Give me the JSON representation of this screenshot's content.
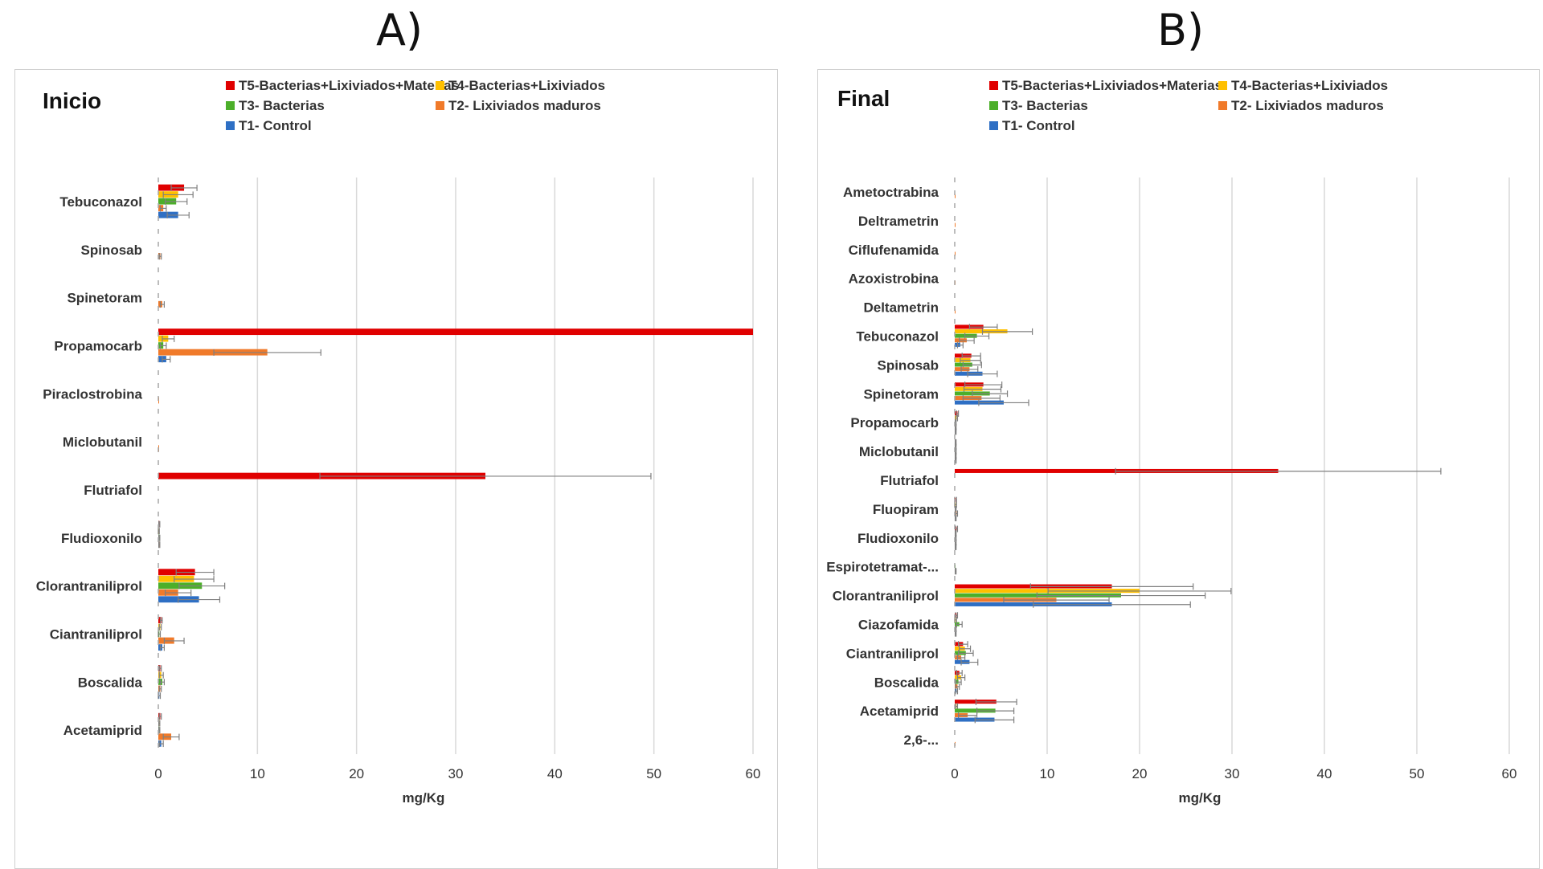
{
  "figure": {
    "label_a": "A)",
    "label_b": "B)"
  },
  "series_colors": {
    "T5-Bacterias+Lixiviados+Materias": "#e00000",
    "T4-Bacterias+Lixiviados": "#ffc000",
    "T3- Bacterias": "#4caf2a",
    "T2- Lixiviados maduros": "#f07a2a",
    "T1- Control": "#2e6fc4"
  },
  "chart_data": [
    {
      "type": "bar",
      "orientation": "horizontal",
      "title": "Inicio",
      "xlabel": "mg/Kg",
      "ylabel": "",
      "xlim": [
        0,
        60
      ],
      "xticks": [
        "0",
        "10",
        "20",
        "30",
        "40",
        "50",
        "60"
      ],
      "grid": true,
      "legend": [
        "T5-Bacterias+Lixiviados+Materias",
        "T4-Bacterias+Lixiviados",
        "T3- Bacterias",
        "T2- Lixiviados maduros",
        "T1- Control"
      ],
      "categories": [
        "Tebuconazol",
        "Spinosab",
        "Spinetoram",
        "Propamocarb",
        "Piraclostrobina",
        "Miclobutanil",
        "Flutriafol",
        "Fludioxonilo",
        "Clorantraniliprol",
        "Ciantraniliprol",
        "Boscalida",
        "Acetamiprid"
      ],
      "series": [
        {
          "name": "T5-Bacterias+Lixiviados+Materias",
          "values": [
            2.6,
            0,
            0,
            60.2,
            0,
            0,
            33.0,
            0.1,
            3.7,
            0.3,
            0.2,
            0.2
          ],
          "errors": [
            1.3,
            0,
            0,
            0,
            0,
            0,
            16.7,
            0.05,
            1.9,
            0.1,
            0.1,
            0.1
          ]
        },
        {
          "name": "T4-Bacterias+Lixiviados",
          "values": [
            2.0,
            0,
            0,
            1.0,
            0,
            0,
            0,
            0.05,
            3.6,
            0.2,
            0.3,
            0.1
          ],
          "errors": [
            1.5,
            0,
            0,
            0.6,
            0,
            0,
            0,
            0.05,
            2.0,
            0.1,
            0.2,
            0.05
          ]
        },
        {
          "name": "T3- Bacterias",
          "values": [
            1.8,
            0,
            0,
            0.5,
            0,
            0,
            0,
            0.1,
            4.4,
            0.1,
            0.4,
            0.1
          ],
          "errors": [
            1.1,
            0,
            0,
            0.3,
            0,
            0,
            0,
            0.05,
            2.3,
            0.1,
            0.2,
            0.05
          ]
        },
        {
          "name": "T2- Lixiviados maduros",
          "values": [
            0.5,
            0.2,
            0.4,
            11.0,
            0.05,
            0.05,
            0,
            0.1,
            2.0,
            1.6,
            0.2,
            1.3
          ],
          "errors": [
            0.3,
            0.1,
            0.2,
            5.4,
            0,
            0,
            0,
            0.05,
            1.3,
            1.0,
            0.1,
            0.8
          ]
        },
        {
          "name": "T1- Control",
          "values": [
            2.0,
            0,
            0,
            0.8,
            0,
            0,
            0,
            0,
            4.1,
            0.4,
            0.1,
            0.3
          ],
          "errors": [
            1.1,
            0,
            0,
            0.4,
            0,
            0,
            0,
            0,
            2.1,
            0.2,
            0.1,
            0.2
          ]
        }
      ]
    },
    {
      "type": "bar",
      "orientation": "horizontal",
      "title": "Final",
      "xlabel": "mg/Kg",
      "ylabel": "",
      "xlim": [
        0,
        60
      ],
      "xticks": [
        "0",
        "10",
        "20",
        "30",
        "40",
        "50",
        "60"
      ],
      "grid": true,
      "legend": [
        "T5-Bacterias+Lixiviados+Materias",
        "T4-Bacterias+Lixiviados",
        "T3- Bacterias",
        "T2- Lixiviados maduros",
        "T1- Control"
      ],
      "categories": [
        "Ametoctrabina",
        "Deltrametrin",
        "Ciflufenamida",
        "Azoxistrobina",
        "Deltametrin",
        "Tebuconazol",
        "Spinosab",
        "Spinetoram",
        "Propamocarb",
        "Miclobutanil",
        "Flutriafol",
        "Fluopiram",
        "Fludioxonilo",
        "Espirotetramat-...",
        "Clorantraniliprol",
        "Ciazofamida",
        "Ciantraniliprol",
        "Boscalida",
        "Acetamiprid",
        "2,6-..."
      ],
      "series": [
        {
          "name": "T5-Bacterias+Lixiviados+Materias",
          "values": [
            0,
            0,
            0,
            0,
            0,
            3.1,
            1.8,
            3.1,
            0.3,
            0.1,
            35.0,
            0.1,
            0.2,
            0,
            17.0,
            0.2,
            0.9,
            0.5,
            4.5,
            0
          ],
          "errors": [
            0,
            0,
            0,
            0,
            0,
            1.5,
            1.0,
            2.0,
            0.1,
            0.05,
            17.6,
            0.1,
            0.1,
            0,
            8.8,
            0.1,
            0.5,
            0.3,
            2.2,
            0
          ]
        },
        {
          "name": "T4-Bacterias+Lixiviados",
          "values": [
            0,
            0,
            0,
            0,
            0,
            5.7,
            1.7,
            3.0,
            0.2,
            0.1,
            0,
            0.1,
            0.1,
            0,
            20.0,
            0.1,
            1.1,
            0.7,
            0.2,
            0
          ],
          "errors": [
            0,
            0,
            0,
            0,
            0,
            2.7,
            1.1,
            2.0,
            0.1,
            0.05,
            0,
            0.1,
            0.05,
            0,
            9.9,
            0.1,
            0.6,
            0.4,
            0.1,
            0
          ]
        },
        {
          "name": "T3- Bacterias",
          "values": [
            0,
            0,
            0,
            0,
            0,
            2.4,
            1.9,
            3.8,
            0.1,
            0.1,
            0,
            0.1,
            0.1,
            0.05,
            18.0,
            0.5,
            1.2,
            0.4,
            4.4,
            0
          ],
          "errors": [
            0,
            0,
            0,
            0,
            0,
            1.3,
            1.0,
            1.9,
            0.05,
            0.05,
            0,
            0.05,
            0.05,
            0,
            9.1,
            0.3,
            0.8,
            0.3,
            2.0,
            0
          ]
        },
        {
          "name": "T2- Lixiviados maduros",
          "values": [
            0.05,
            0.05,
            0.05,
            0.05,
            0.05,
            1.3,
            1.6,
            2.9,
            0.1,
            0.1,
            0,
            0.2,
            0.1,
            0.1,
            11.0,
            0.1,
            0.7,
            0.3,
            1.4,
            0.05
          ],
          "errors": [
            0,
            0,
            0,
            0,
            0,
            0.8,
            0.9,
            2.0,
            0.05,
            0.05,
            0,
            0.1,
            0.05,
            0.05,
            5.7,
            0.05,
            0.4,
            0.2,
            1.0,
            0
          ]
        },
        {
          "name": "T1- Control",
          "values": [
            0,
            0,
            0,
            0,
            0,
            0.6,
            3.0,
            5.3,
            0.1,
            0.1,
            0,
            0.1,
            0.1,
            0,
            17.0,
            0.1,
            1.6,
            0.2,
            4.3,
            0
          ],
          "errors": [
            0,
            0,
            0,
            0,
            0,
            0.3,
            1.6,
            2.7,
            0.05,
            0.05,
            0,
            0.05,
            0.05,
            0,
            8.5,
            0.05,
            0.9,
            0.1,
            2.1,
            0
          ]
        }
      ]
    }
  ]
}
